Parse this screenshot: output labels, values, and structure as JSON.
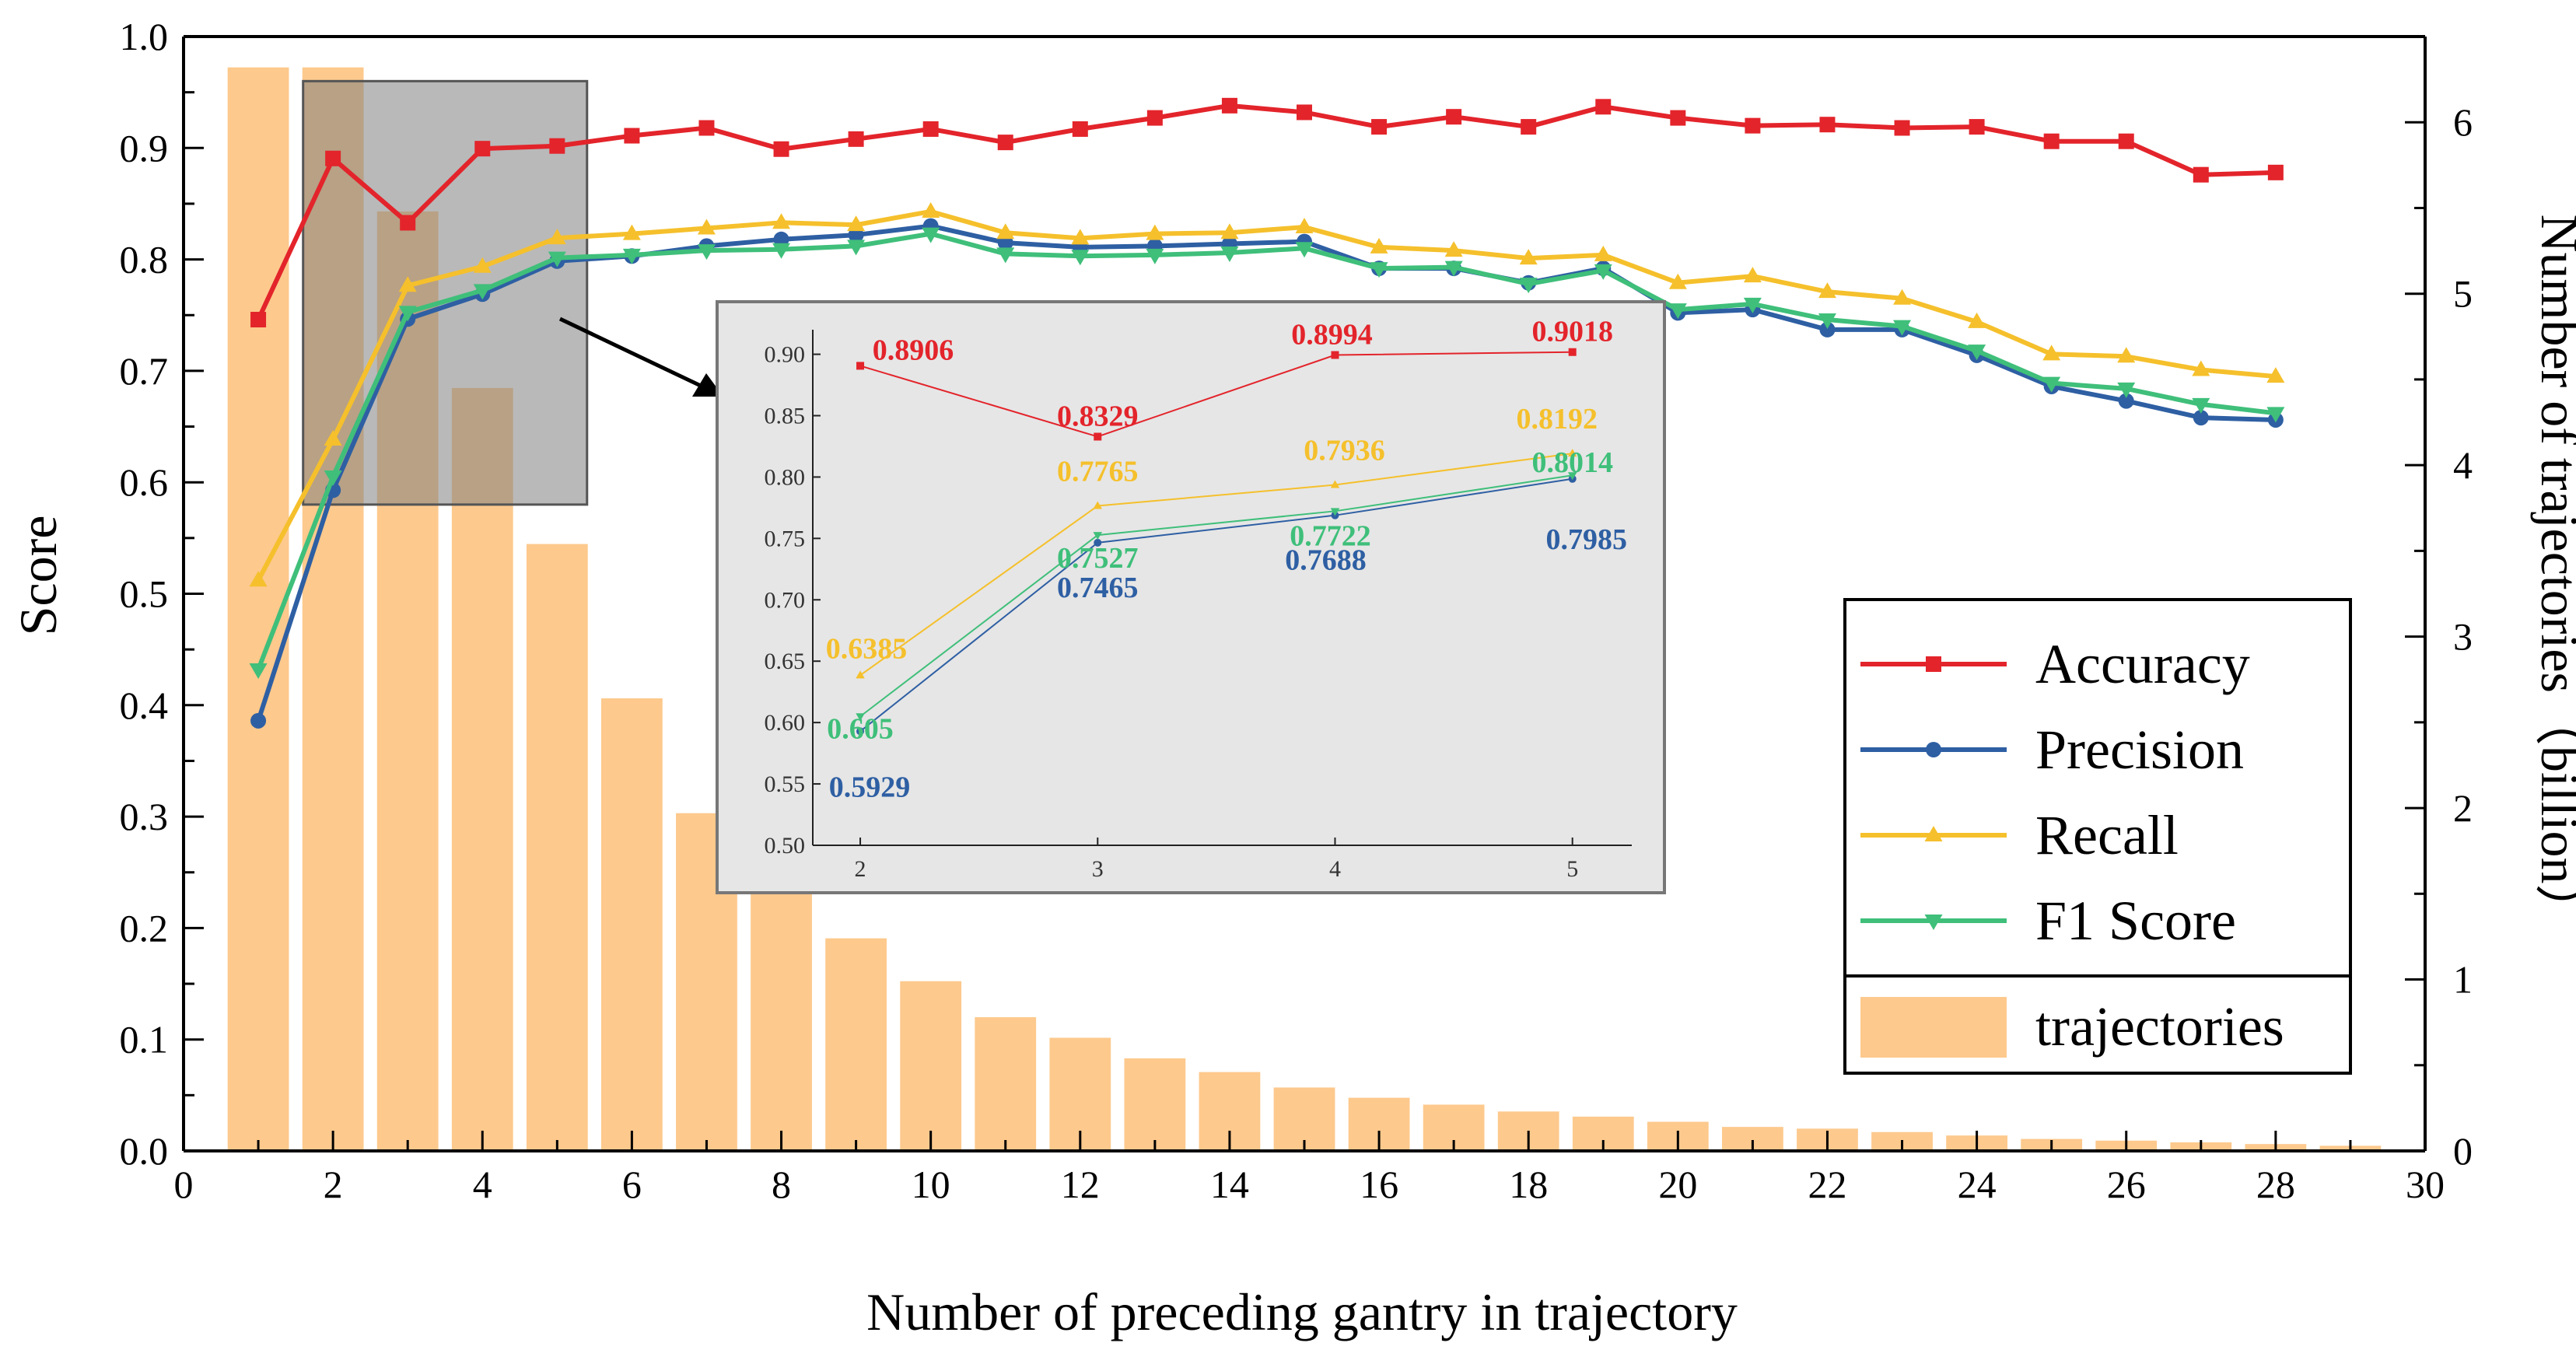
{
  "chart_data": {
    "type": "bar+line",
    "xlabel": "Number of preceding gantry in trajectory",
    "ylabel": "Score",
    "y2label": "Number of trajectories（billion）",
    "xlim": [
      0,
      30
    ],
    "ylim": [
      0,
      1.0
    ],
    "y2lim": [
      0,
      6.5
    ],
    "x_ticks": [
      "0",
      "2",
      "4",
      "6",
      "8",
      "10",
      "12",
      "14",
      "16",
      "18",
      "20",
      "22",
      "24",
      "26",
      "28",
      "30"
    ],
    "y_ticks": [
      "0.0",
      "0.1",
      "0.2",
      "0.3",
      "0.4",
      "0.5",
      "0.6",
      "0.7",
      "0.8",
      "0.9",
      "1.0"
    ],
    "y2_ticks": [
      "0",
      "1",
      "2",
      "3",
      "4",
      "5",
      "6"
    ],
    "colors": {
      "accuracy": "#e3242b",
      "precision": "#2e5fa3",
      "recall": "#f5c02c",
      "f1": "#3fbf7a",
      "bars": "#fdc98d",
      "inset_bg": "#e6e6e6",
      "highlight_box": "#808080"
    },
    "x": [
      1,
      2,
      3,
      4,
      5,
      6,
      7,
      8,
      9,
      10,
      11,
      12,
      13,
      14,
      15,
      16,
      17,
      18,
      19,
      20,
      21,
      22,
      23,
      24,
      25,
      26,
      27,
      28
    ],
    "series": [
      {
        "name": "Accuracy",
        "marker": "square",
        "color": "#e3242b",
        "values": [
          0.746,
          0.8906,
          0.8329,
          0.8994,
          0.9018,
          0.911,
          0.918,
          0.899,
          0.908,
          0.917,
          0.905,
          0.917,
          0.927,
          0.938,
          0.932,
          0.919,
          0.928,
          0.919,
          0.937,
          0.927,
          0.92,
          0.921,
          0.918,
          0.919,
          0.906,
          0.906,
          0.876,
          0.878
        ]
      },
      {
        "name": "Precision",
        "marker": "circle",
        "color": "#2e5fa3",
        "values": [
          0.386,
          0.5929,
          0.7465,
          0.7688,
          0.7985,
          0.803,
          0.812,
          0.818,
          0.822,
          0.83,
          0.815,
          0.811,
          0.812,
          0.814,
          0.816,
          0.792,
          0.792,
          0.779,
          0.792,
          0.752,
          0.755,
          0.737,
          0.737,
          0.714,
          0.686,
          0.673,
          0.658,
          0.656
        ]
      },
      {
        "name": "Recall",
        "marker": "triangle-up",
        "color": "#f5c02c",
        "values": [
          0.512,
          0.6385,
          0.7765,
          0.7936,
          0.8192,
          0.823,
          0.828,
          0.833,
          0.831,
          0.843,
          0.824,
          0.819,
          0.823,
          0.824,
          0.829,
          0.811,
          0.808,
          0.801,
          0.804,
          0.779,
          0.785,
          0.771,
          0.765,
          0.744,
          0.715,
          0.713,
          0.701,
          0.695
        ]
      },
      {
        "name": "F1 Score",
        "marker": "triangle-down",
        "color": "#3fbf7a",
        "values": [
          0.432,
          0.605,
          0.7527,
          0.7722,
          0.8014,
          0.804,
          0.808,
          0.809,
          0.812,
          0.823,
          0.805,
          0.803,
          0.804,
          0.806,
          0.81,
          0.792,
          0.793,
          0.778,
          0.79,
          0.755,
          0.76,
          0.746,
          0.74,
          0.718,
          0.689,
          0.684,
          0.67,
          0.662
        ]
      }
    ],
    "bars": {
      "name": "trajectories",
      "axis": "y2",
      "unit": "billion",
      "x": [
        1,
        2,
        3,
        4,
        5,
        6,
        7,
        8,
        9,
        10,
        11,
        12,
        13,
        14,
        15,
        16,
        17,
        18,
        19,
        20,
        21,
        22,
        23,
        24,
        25,
        26,
        27,
        28,
        29
      ],
      "values": [
        6.32,
        6.32,
        5.48,
        4.45,
        3.54,
        2.64,
        1.97,
        1.57,
        1.24,
        0.99,
        0.78,
        0.66,
        0.54,
        0.46,
        0.37,
        0.31,
        0.27,
        0.23,
        0.2,
        0.17,
        0.14,
        0.13,
        0.11,
        0.09,
        0.07,
        0.06,
        0.05,
        0.04,
        0.03
      ]
    },
    "inset": {
      "xlim": [
        1.8,
        5.25
      ],
      "ylim": [
        0.5,
        0.92
      ],
      "x_ticks": [
        "2",
        "3",
        "4",
        "5"
      ],
      "y_ticks": [
        "0.50",
        "0.55",
        "0.60",
        "0.65",
        "0.70",
        "0.75",
        "0.80",
        "0.85",
        "0.90"
      ],
      "x": [
        2,
        3,
        4,
        5
      ],
      "labels": {
        "Accuracy": [
          "0.8906",
          "0.8329",
          "0.8994",
          "0.9018"
        ],
        "Precision": [
          "0.5929",
          "0.7465",
          "0.7688",
          "0.7985"
        ],
        "Recall": [
          "0.6385",
          "0.7765",
          "0.7936",
          "0.8192"
        ],
        "F1 Score": [
          "0.605",
          "0.7527",
          "0.7722",
          "0.8014"
        ]
      }
    },
    "legend": {
      "position": "right-center",
      "items": [
        "Accuracy",
        "Precision",
        "Recall",
        "F1 Score",
        "trajectories"
      ]
    }
  }
}
